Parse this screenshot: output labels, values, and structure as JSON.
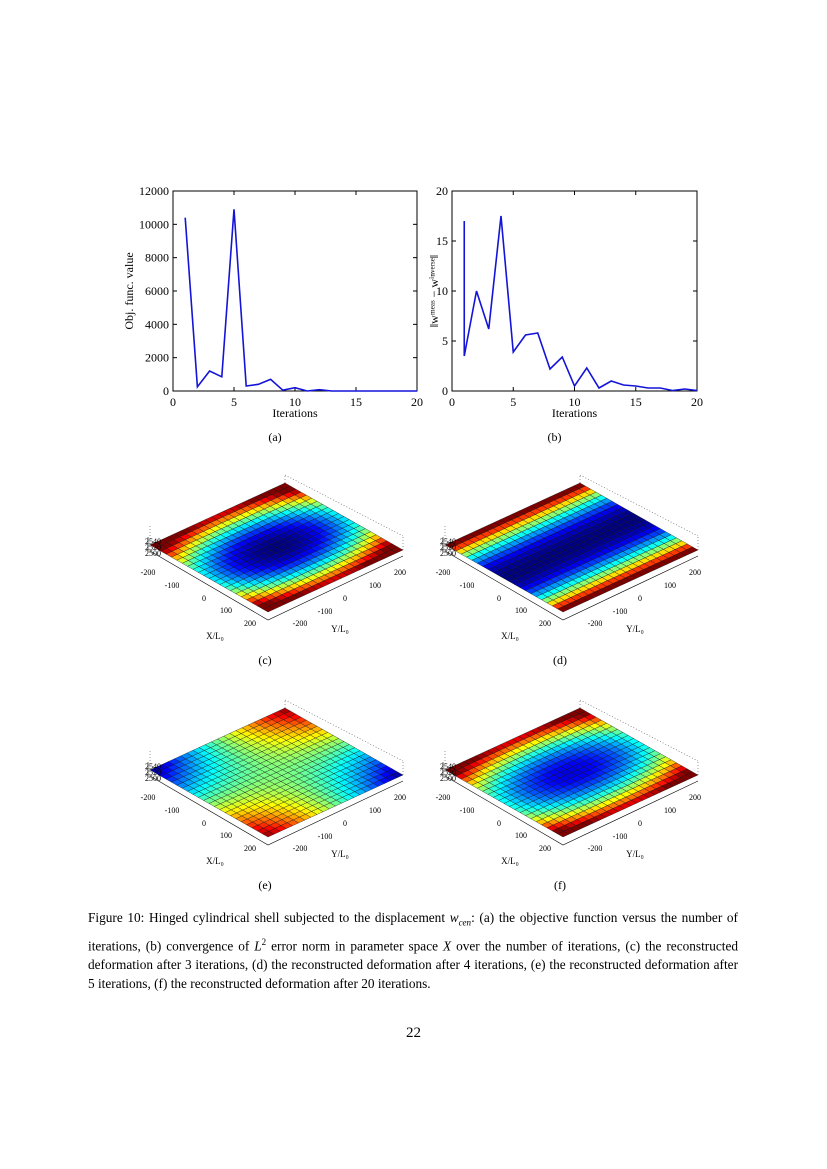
{
  "chart_data": [
    {
      "type": "line",
      "label": "(a)",
      "xlabel": "Iterations",
      "ylabel": "Obj. func. value",
      "color": "#1414d8",
      "x": [
        1,
        2,
        3,
        4,
        5,
        6,
        7,
        8,
        9,
        10,
        11,
        12,
        13,
        14,
        15,
        16,
        17,
        18,
        19,
        20
      ],
      "values": [
        10400,
        250,
        1200,
        850,
        10900,
        300,
        400,
        700,
        50,
        200,
        0,
        80,
        0,
        0,
        0,
        0,
        0,
        0,
        0,
        0
      ],
      "xlim": [
        0,
        20
      ],
      "ylim": [
        0,
        12000
      ],
      "xticks": [
        0,
        5,
        10,
        15,
        20
      ],
      "yticks": [
        0,
        2000,
        4000,
        6000,
        8000,
        10000,
        12000
      ]
    },
    {
      "type": "line",
      "label": "(b)",
      "xlabel": "Iterations",
      "ylabel": "‖wᵐᵉᵃˢ − wⁱⁿᵛᵉʳˢᵉ‖",
      "color": "#1414d8",
      "x": [
        1,
        1,
        2,
        3,
        4,
        5,
        6,
        7,
        8,
        9,
        10,
        11,
        12,
        13,
        14,
        15,
        16,
        17,
        18,
        19,
        20
      ],
      "values": [
        17,
        3.5,
        10,
        6.2,
        17.5,
        3.9,
        5.6,
        5.8,
        2.2,
        3.4,
        0.5,
        2.3,
        0.3,
        1.0,
        0.6,
        0.5,
        0.3,
        0.3,
        0.05,
        0.2,
        0.05
      ],
      "xlim": [
        0,
        20
      ],
      "ylim": [
        0,
        20
      ],
      "xticks": [
        0,
        5,
        10,
        15,
        20
      ],
      "yticks": [
        0,
        5,
        10,
        15,
        20
      ]
    }
  ],
  "surface_plots": [
    {
      "label": "(c)",
      "zticks": [
        2540,
        2520,
        2500
      ],
      "xticks": [
        -200,
        -100,
        0,
        100,
        200
      ],
      "yticks": [
        -200,
        -100,
        0,
        100,
        200
      ],
      "xlabel": "X/L₀",
      "ylabel": "Y/L₀"
    },
    {
      "label": "(d)",
      "zticks": [
        2540,
        2520,
        2500
      ],
      "xticks": [
        -200,
        -100,
        0,
        100,
        200
      ],
      "yticks": [
        -200,
        -100,
        0,
        100,
        200
      ],
      "xlabel": "X/L₀",
      "ylabel": "Y/L₀"
    },
    {
      "label": "(e)",
      "zticks": [
        2540,
        2520,
        2500
      ],
      "xticks": [
        -200,
        -100,
        0,
        100,
        200
      ],
      "yticks": [
        -200,
        -100,
        0,
        100,
        200
      ],
      "xlabel": "X/L₀",
      "ylabel": "Y/L₀"
    },
    {
      "label": "(f)",
      "zticks": [
        2540,
        2520,
        2500
      ],
      "xticks": [
        -200,
        -100,
        0,
        100,
        200
      ],
      "yticks": [
        -200,
        -100,
        0,
        100,
        200
      ],
      "xlabel": "X/L₀",
      "ylabel": "Y/L₀"
    }
  ],
  "caption": [
    "Figure 10: Hinged cylindrical shell subjected to the displacement ",
    "w",
    "cen",
    ": (a) the objective function versus the number of iterations, (b) convergence of ",
    "L",
    "2",
    " error norm in parameter space ",
    "X",
    " over the number of iterations, (c) the reconstructed deformation after 3 iterations, (d) the reconstructed deformation after 4 iterations, (e) the reconstructed deformation after 5 iterations, (f) the reconstructed deformation after 20 iterations."
  ],
  "page_number": "22"
}
